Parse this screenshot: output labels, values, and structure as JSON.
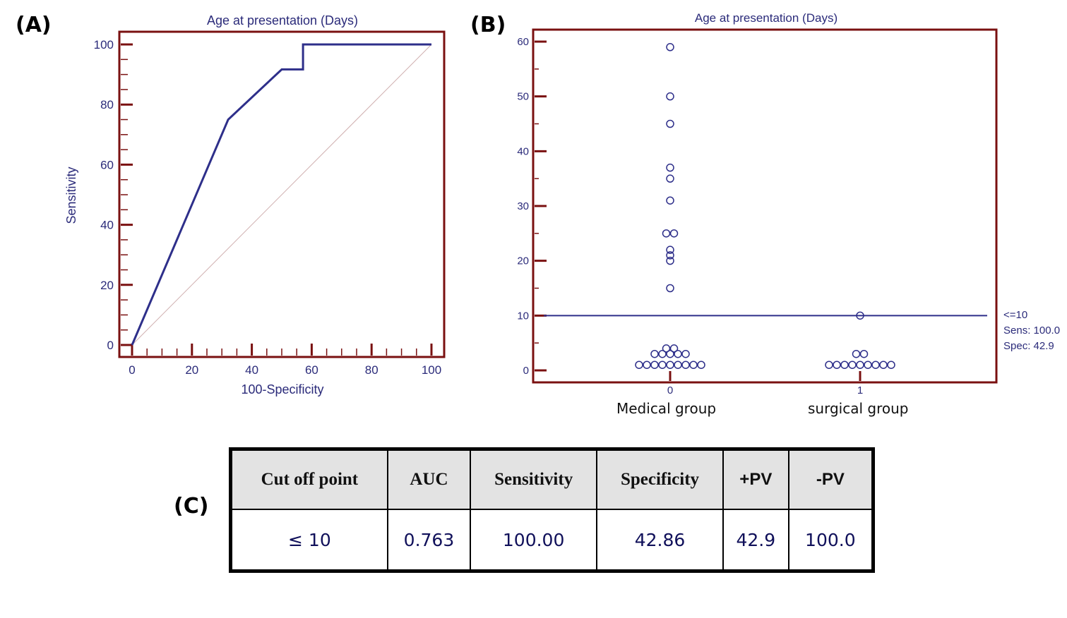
{
  "panels": {
    "a": "(A)",
    "b": "(B)",
    "c": "(C)"
  },
  "colors": {
    "axis": "#7a1010",
    "curve": "#2e2f8a",
    "diagonal": "#d0b0b0",
    "text": "#2b2b7a"
  },
  "chart_data": [
    {
      "type": "line",
      "title": "Age at presentation (Days)",
      "xlabel": "100-Specificity",
      "ylabel": "Sensitivity",
      "xlim": [
        0,
        100
      ],
      "ylim": [
        0,
        100
      ],
      "xticks": [
        0,
        20,
        40,
        60,
        80,
        100
      ],
      "yticks": [
        0,
        20,
        40,
        60,
        80,
        100
      ],
      "grid": false,
      "series": [
        {
          "name": "ROC curve",
          "x": [
            0,
            0,
            32.1,
            50,
            57.1,
            57.1,
            100
          ],
          "y": [
            0,
            0,
            75,
            91.7,
            91.7,
            100,
            100
          ]
        },
        {
          "name": "Reference line",
          "x": [
            0,
            100
          ],
          "y": [
            0,
            100
          ]
        }
      ]
    },
    {
      "type": "scatter",
      "title": "Age at presentation (Days)",
      "xlabel": "",
      "ylabel": "",
      "ylim": [
        0,
        60
      ],
      "yticks": [
        0,
        10,
        20,
        30,
        40,
        50,
        60
      ],
      "categories": [
        "0",
        "1"
      ],
      "category_labels": [
        "Medical group",
        "surgical group"
      ],
      "series": [
        {
          "name": "0",
          "values": [
            1,
            1,
            1,
            1,
            1,
            1,
            1,
            1,
            1,
            3,
            3,
            3,
            3,
            3,
            4,
            4,
            15,
            20,
            21,
            22,
            25,
            25,
            31,
            35,
            37,
            45,
            50,
            59
          ]
        },
        {
          "name": "1",
          "values": [
            1,
            1,
            1,
            1,
            1,
            1,
            1,
            1,
            1,
            3,
            3,
            10
          ]
        }
      ],
      "cutoff": {
        "value": 10,
        "label": "<=10",
        "sens": "Sens: 100.0",
        "spec": "Spec: 42.9"
      }
    }
  ],
  "table": {
    "headers": [
      "Cut off point",
      "AUC",
      "Sensitivity",
      "Specificity",
      "+PV",
      "-PV"
    ],
    "rows": [
      [
        "≤ 10",
        "0.763",
        "100.00",
        "42.86",
        "42.9",
        "100.0"
      ]
    ]
  }
}
